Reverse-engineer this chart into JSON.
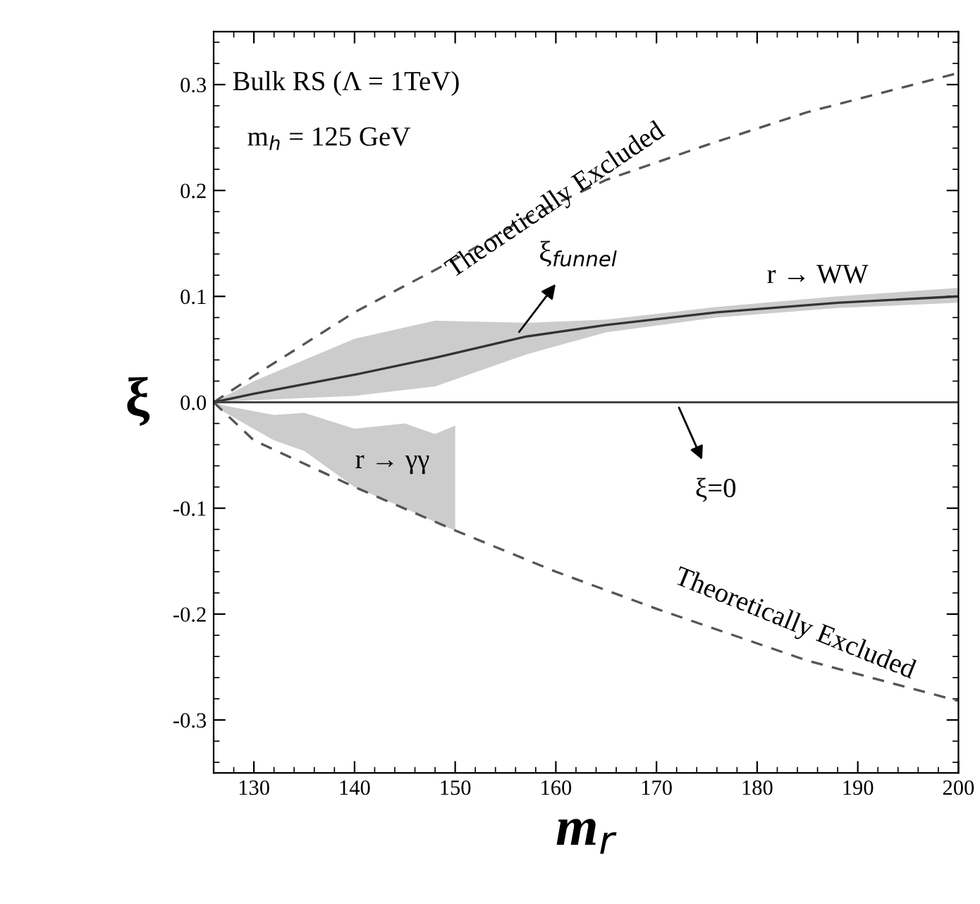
{
  "chart_data": {
    "type": "line",
    "xlabel": "m$_{r}$",
    "ylabel": "ξ",
    "xlim": [
      126,
      200
    ],
    "xticks": [
      130,
      140,
      150,
      160,
      170,
      180,
      190,
      200
    ],
    "ylim": [
      -0.35,
      0.35
    ],
    "yticks": [
      -0.3,
      -0.2,
      -0.1,
      {
        "value": 0,
        "label": "0.0"
      },
      0.1,
      0.2,
      0.3
    ],
    "grid": false,
    "legend": false,
    "series": [
      {
        "line_style": "dashed",
        "color": "#555555",
        "x": [
          126,
          130,
          140,
          150,
          157,
          165,
          175,
          185,
          200
        ],
        "values": [
          0,
          0.025,
          0.085,
          0.135,
          0.174,
          0.21,
          0.243,
          0.274,
          0.311
        ]
      },
      {
        "line_style": "dashed",
        "color": "#555555",
        "x": [
          126,
          130,
          140,
          150,
          160,
          170,
          185,
          200
        ],
        "values": [
          0,
          -0.036,
          -0.08,
          -0.121,
          -0.16,
          -0.195,
          -0.244,
          -0.282
        ]
      },
      {
        "line_style": "solid",
        "color": "#333333",
        "x": [
          126,
          130,
          140,
          148,
          157,
          165,
          176,
          188,
          200
        ],
        "values": [
          0,
          0.008,
          0.026,
          0.042,
          0.062,
          0.073,
          0.085,
          0.094,
          0.1
        ],
        "lower": [
          0,
          0.002,
          0.006,
          0.015,
          0.045,
          0.066,
          0.08,
          0.089,
          0.094
        ],
        "upper": [
          0,
          0.02,
          0.06,
          0.077,
          0.075,
          0.078,
          0.09,
          0.1,
          0.108
        ]
      },
      {
        "type": "area",
        "color": "#cccccc",
        "x": [
          126,
          127,
          132,
          135,
          140,
          145,
          148,
          150,
          150,
          148,
          145,
          140,
          135,
          132,
          127
        ],
        "values": [
          0,
          -0.003,
          -0.012,
          -0.01,
          -0.025,
          -0.02,
          -0.03,
          -0.022,
          -0.121,
          -0.113,
          -0.1,
          -0.08,
          -0.046,
          -0.036,
          -0.009
        ]
      }
    ],
    "ref_lines": [
      {
        "axis": "y",
        "value": 0,
        "color": "#444444",
        "line_style": "solid"
      }
    ],
    "annotations": [
      "Bulk RS (Λ = 1TeV)",
      "m$_{h}$ = 125 GeV",
      {
        "text": "Theoretically Excluded",
        "x": 160,
        "y": 0.19
      },
      "Theoretically Excluded",
      {
        "text": "ξ$_{funnel}$",
        "x": 156,
        "y": 0.062
      },
      {
        "text": "r → WW",
        "x": 186,
        "y": 0.093
      },
      {
        "text": "ξ=0",
        "x": 172,
        "y": 0
      },
      "r → γγ"
    ]
  }
}
